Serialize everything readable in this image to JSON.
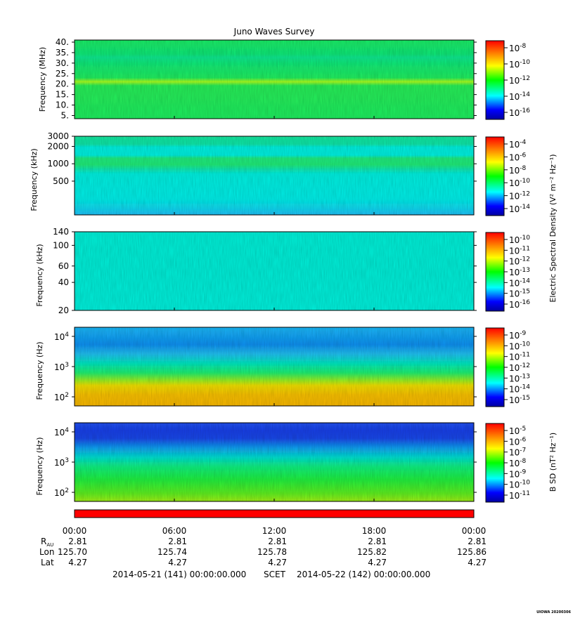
{
  "chart_data": {
    "type": "heatmap",
    "title": "Juno Waves Survey",
    "x_ticks": [
      "00:00",
      "06:00",
      "12:00",
      "18:00",
      "00:00"
    ],
    "panels": [
      {
        "ylabel": "Frequency (MHz)",
        "ylim": [
          3.5,
          41
        ],
        "y_ticks": [
          "40.",
          "35.",
          "30.",
          "25.",
          "20.",
          "15.",
          "10.",
          "5."
        ],
        "colorbar_ticks": [
          {
            "mantissa": "10",
            "exponent": "-8"
          },
          {
            "mantissa": "10",
            "exponent": "-10"
          },
          {
            "mantissa": "10",
            "exponent": "-12"
          },
          {
            "mantissa": "10",
            "exponent": "-14"
          },
          {
            "mantissa": "10",
            "exponent": "-16"
          }
        ],
        "colorbar_label": ""
      },
      {
        "ylabel": "Frequency (kHz)",
        "ylim": [
          130,
          3000
        ],
        "y_ticks": [
          "3000",
          "2000",
          "1000",
          "500"
        ],
        "colorbar_ticks": [
          {
            "mantissa": "10",
            "exponent": "-4"
          },
          {
            "mantissa": "10",
            "exponent": "-6"
          },
          {
            "mantissa": "10",
            "exponent": "-8"
          },
          {
            "mantissa": "10",
            "exponent": "-10"
          },
          {
            "mantissa": "10",
            "exponent": "-12"
          },
          {
            "mantissa": "10",
            "exponent": "-14"
          }
        ],
        "colorbar_label": ""
      },
      {
        "ylabel": "Frequency (kHz)",
        "ylim": [
          20,
          140
        ],
        "y_ticks": [
          "140",
          "100",
          "60",
          "40",
          "20"
        ],
        "colorbar_ticks": [
          {
            "mantissa": "10",
            "exponent": "-10"
          },
          {
            "mantissa": "10",
            "exponent": "-11"
          },
          {
            "mantissa": "10",
            "exponent": "-12"
          },
          {
            "mantissa": "10",
            "exponent": "-13"
          },
          {
            "mantissa": "10",
            "exponent": "-14"
          },
          {
            "mantissa": "10",
            "exponent": "-15"
          },
          {
            "mantissa": "10",
            "exponent": "-16"
          }
        ],
        "colorbar_label": ""
      },
      {
        "ylabel": "Frequency (Hz)",
        "ylim": [
          50,
          20000
        ],
        "y_ticks": [
          {
            "mantissa": "10",
            "exponent": "4"
          },
          {
            "mantissa": "10",
            "exponent": "3"
          },
          {
            "mantissa": "10",
            "exponent": "2"
          }
        ],
        "colorbar_ticks": [
          {
            "mantissa": "10",
            "exponent": "-9"
          },
          {
            "mantissa": "10",
            "exponent": "-10"
          },
          {
            "mantissa": "10",
            "exponent": "-11"
          },
          {
            "mantissa": "10",
            "exponent": "-12"
          },
          {
            "mantissa": "10",
            "exponent": "-13"
          },
          {
            "mantissa": "10",
            "exponent": "-14"
          },
          {
            "mantissa": "10",
            "exponent": "-15"
          }
        ],
        "colorbar_label": ""
      },
      {
        "ylabel": "Frequency (Hz)",
        "ylim": [
          50,
          20000
        ],
        "y_ticks": [
          {
            "mantissa": "10",
            "exponent": "4"
          },
          {
            "mantissa": "10",
            "exponent": "3"
          },
          {
            "mantissa": "10",
            "exponent": "2"
          }
        ],
        "colorbar_ticks": [
          {
            "mantissa": "10",
            "exponent": "-5"
          },
          {
            "mantissa": "10",
            "exponent": "-6"
          },
          {
            "mantissa": "10",
            "exponent": "-7"
          },
          {
            "mantissa": "10",
            "exponent": "-8"
          },
          {
            "mantissa": "10",
            "exponent": "-9"
          },
          {
            "mantissa": "10",
            "exponent": "-10"
          },
          {
            "mantissa": "10",
            "exponent": "-11"
          }
        ],
        "colorbar_label": ""
      }
    ],
    "shared_colorbar_label": "Electric Spectral Density (V² m⁻² Hz⁻¹)",
    "bsd_colorbar_label": "B SD (nT² Hz⁻¹)",
    "ephemeris": {
      "labels": {
        "r": "R",
        "r_sub": "AU",
        "lon": "Lon",
        "lat": "Lat"
      },
      "r": [
        "2.81",
        "2.81",
        "2.81",
        "2.81",
        "2.81"
      ],
      "lon": [
        "125.70",
        "125.74",
        "125.78",
        "125.82",
        "125.86"
      ],
      "lat": [
        "4.27",
        "4.27",
        "4.27",
        "4.27",
        "4.27"
      ]
    },
    "date_start": "2014-05-21 (141) 00:00:00.000",
    "scet_label": "SCET",
    "date_end": "2014-05-22 (142) 00:00:00.000",
    "footer_tag": "UIOWA 20200306",
    "status_bar_color": "#ff0000"
  }
}
